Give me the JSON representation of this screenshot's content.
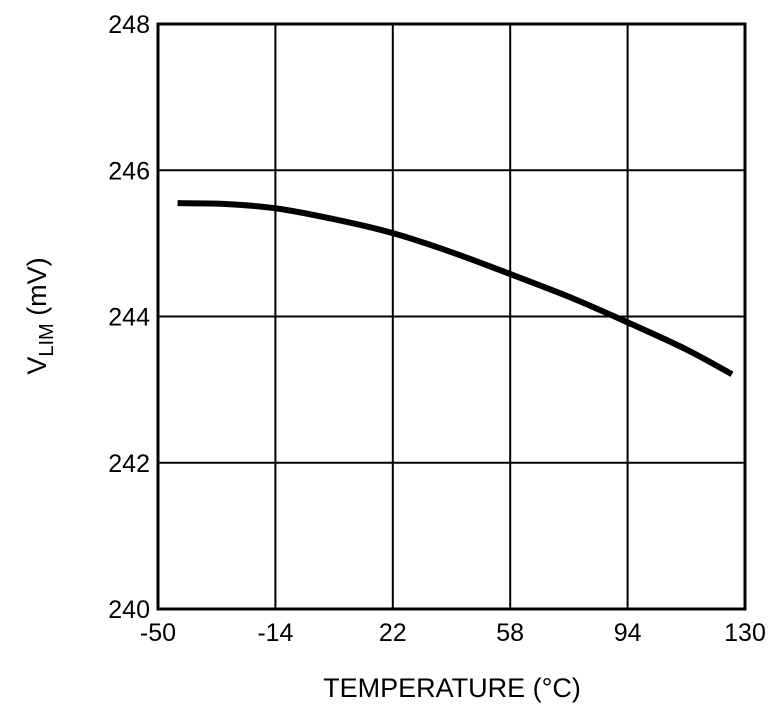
{
  "chart_data": {
    "type": "line",
    "title": "",
    "xlabel": "TEMPERATURE (°C)",
    "ylabel_main": "V",
    "ylabel_sub": "LIM",
    "ylabel_unit": " (mV)",
    "xlim": [
      -50,
      130
    ],
    "ylim": [
      240,
      248
    ],
    "xticks": [
      "-50",
      "-14",
      "22",
      "58",
      "94",
      "130"
    ],
    "yticks": [
      "240",
      "242",
      "244",
      "246",
      "248"
    ],
    "grid": true,
    "line_color": "#000000",
    "series": [
      {
        "x": [
          -44,
          -30,
          -14,
          4,
          22,
          40,
          58,
          76,
          94,
          112,
          126
        ],
        "y": [
          245.55,
          245.54,
          245.48,
          245.33,
          245.14,
          244.88,
          244.58,
          244.27,
          243.92,
          243.55,
          243.21
        ]
      }
    ]
  }
}
